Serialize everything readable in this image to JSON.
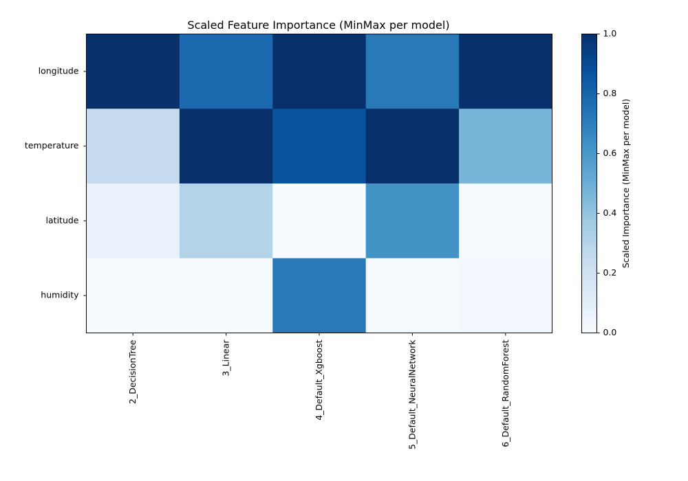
{
  "chart_data": {
    "type": "heatmap",
    "title": "Scaled Feature Importance (MinMax per model)",
    "xlabel": "",
    "ylabel": "",
    "rows": [
      "longitude",
      "temperature",
      "latitude",
      "humidity"
    ],
    "columns": [
      "2_DecisionTree",
      "3_Linear",
      "4_Default_Xgboost",
      "5_Default_NeuralNetwork",
      "6_Default_RandomForest"
    ],
    "values": [
      [
        1.0,
        0.78,
        1.0,
        0.72,
        1.0
      ],
      [
        0.25,
        1.0,
        0.87,
        1.0,
        0.47
      ],
      [
        0.07,
        0.31,
        0.0,
        0.62,
        0.01
      ],
      [
        0.0,
        0.0,
        0.72,
        0.01,
        0.02
      ]
    ],
    "colormap": "Blues",
    "colorbar": {
      "label": "Scaled Importance (MinMax per model)",
      "range": [
        0.0,
        1.0
      ],
      "ticks": [
        "0.0",
        "0.2",
        "0.4",
        "0.6",
        "0.8",
        "1.0"
      ]
    }
  }
}
